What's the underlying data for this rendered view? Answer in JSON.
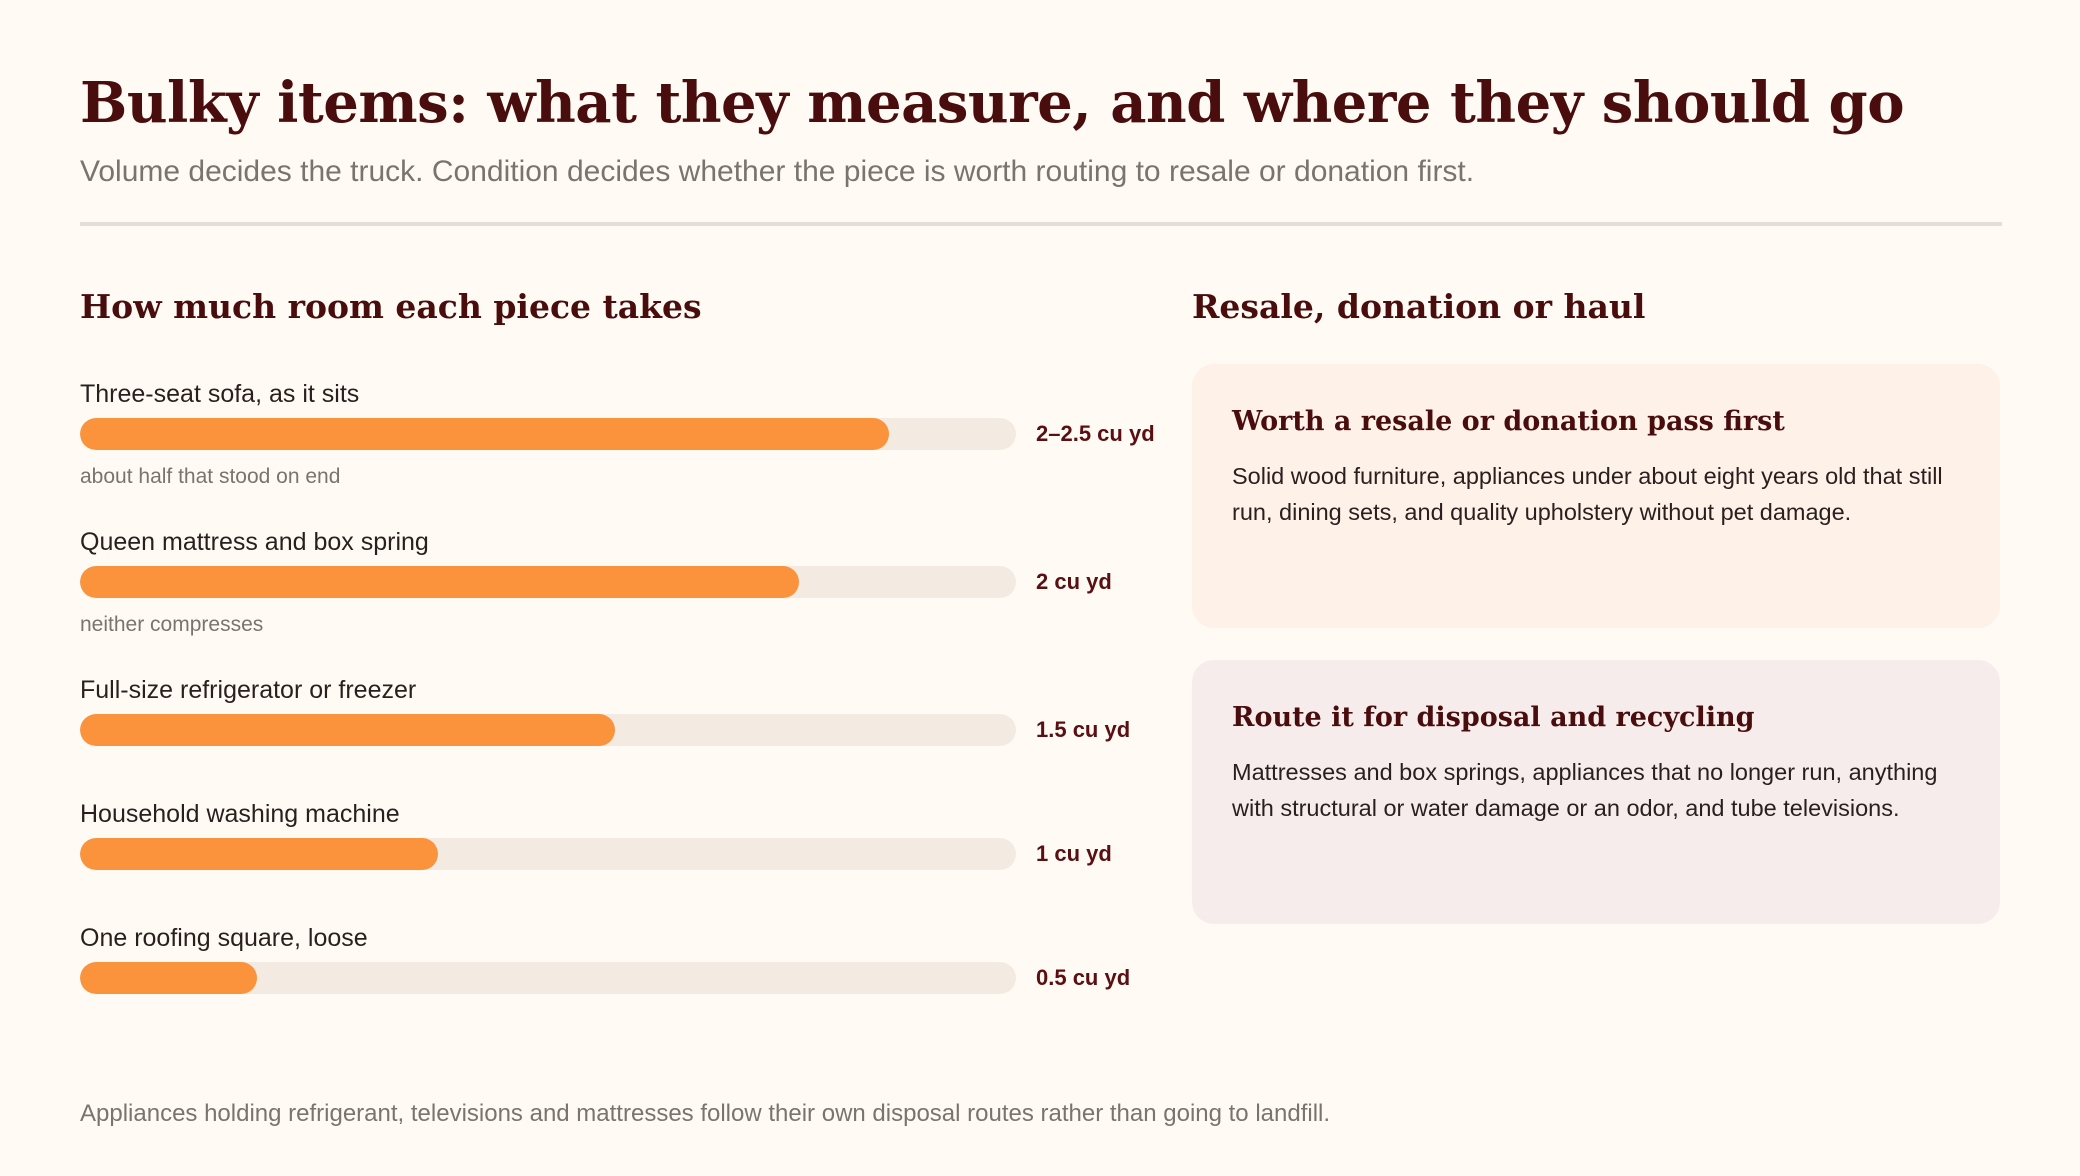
{
  "header": {
    "title": "Bulky items: what they measure, and where they should go",
    "subtitle": "Volume decides the truck. Condition decides whether the piece is worth routing to resale or donation first."
  },
  "sections": {
    "left_title": "How much room each piece takes",
    "right_title": "Resale, donation or haul"
  },
  "chart_data": {
    "type": "bar",
    "orientation": "horizontal",
    "title": "How much room each piece takes",
    "unit": "cu yd",
    "xlim": [
      0,
      2.8
    ],
    "grid": false,
    "bar_color": "#fb923c",
    "track_color": "#f3eae2",
    "categories": [
      "Three-seat sofa, as it sits",
      "Queen mattress and box spring",
      "Full-size refrigerator or freezer",
      "Household washing machine",
      "One roofing square, loose"
    ],
    "values": [
      2.42,
      2.15,
      1.6,
      1.07,
      0.53
    ],
    "value_labels": [
      "2–2.5 cu yd",
      "2 cu yd",
      "1.5 cu yd",
      "1 cu yd",
      "0.5 cu yd"
    ],
    "notes": [
      "about half that stood on end",
      "neither compresses",
      "",
      "",
      ""
    ]
  },
  "cards": [
    {
      "title": "Worth a resale or donation pass first",
      "text": "Solid wood furniture, appliances under about eight years old that still run, dining sets, and quality upholstery without pet damage.",
      "background": "#fdf1e8"
    },
    {
      "title": "Route it for disposal and recycling",
      "text": "Mattresses and box springs, appliances that no longer run, anything with structural or water damage or an odor, and tube televisions.",
      "background": "#f6ecec"
    }
  ],
  "footnote": "Appliances holding refrigerant, televisions and mattresses follow their own disposal routes rather than going to landfill.",
  "colors": {
    "accent": "#fb923c",
    "heading": "#4a0d0d",
    "value_text": "#5a0f12",
    "muted_text": "#7a7470",
    "background": "#fffbf4"
  }
}
